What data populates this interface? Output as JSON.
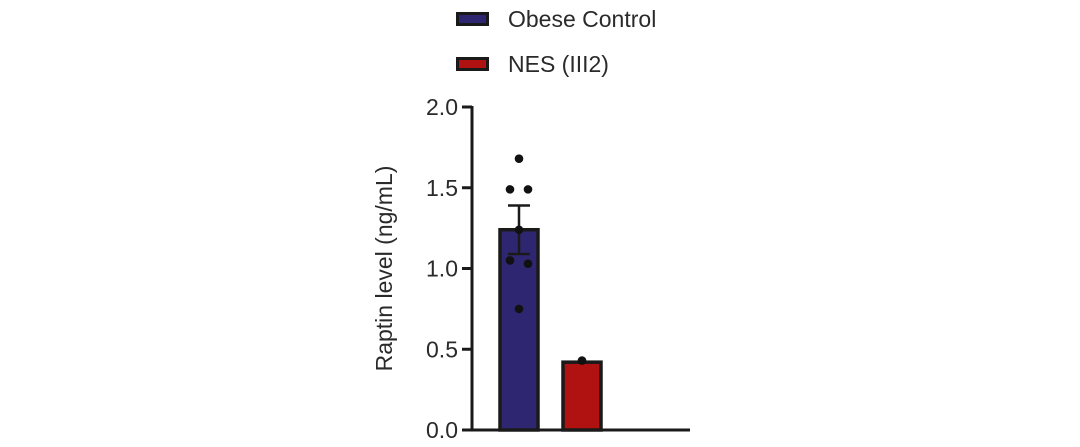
{
  "chart_data": {
    "type": "bar",
    "title": "",
    "xlabel": "",
    "ylabel": "Raptin level (ng/mL)",
    "ylim": [
      0,
      2.0
    ],
    "yticks": [
      {
        "value": 0.0,
        "label": "0.0"
      },
      {
        "value": 0.5,
        "label": "0.5"
      },
      {
        "value": 1.0,
        "label": "1.0"
      },
      {
        "value": 1.5,
        "label": "1.5"
      },
      {
        "value": 2.0,
        "label": "2.0"
      }
    ],
    "grid": false,
    "legend_position": "top",
    "series": [
      {
        "name": "Obese Control",
        "color": "#2e2670",
        "value": 1.24,
        "error": 0.15,
        "points": [
          1.68,
          1.49,
          1.49,
          1.24,
          1.05,
          1.03,
          0.75
        ]
      },
      {
        "name": "NES (III2)",
        "color": "#b01212",
        "value": 0.42,
        "error": 0,
        "points": [
          0.43
        ]
      }
    ]
  }
}
